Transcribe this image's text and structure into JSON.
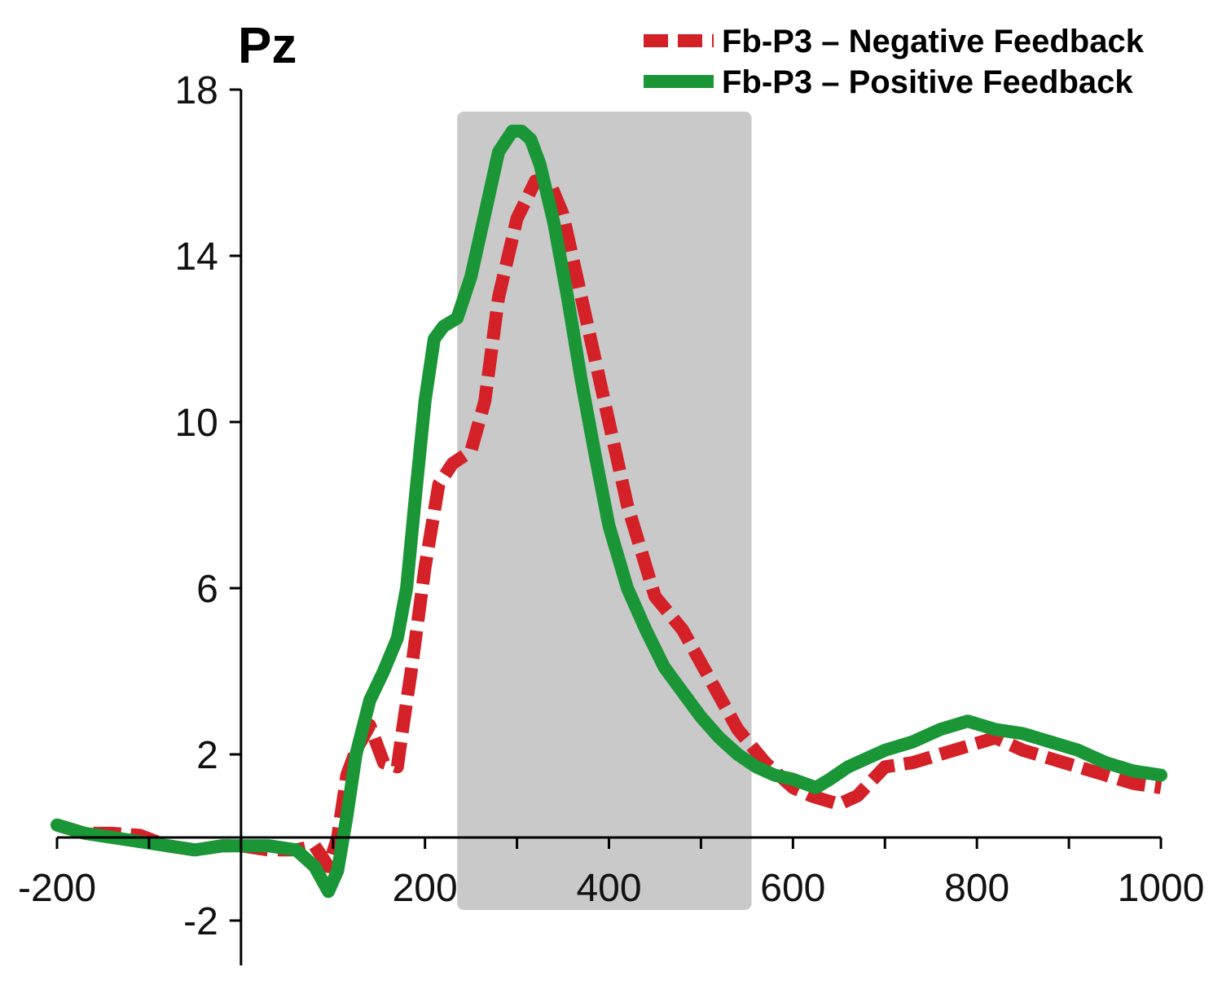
{
  "chart_data": {
    "type": "line",
    "title": "Pz",
    "xlabel": "",
    "ylabel": "",
    "xlim": [
      -200,
      1000
    ],
    "ylim": [
      -3,
      18
    ],
    "x_ticks": [
      -200,
      200,
      400,
      600,
      800,
      1000
    ],
    "y_ticks": [
      -2,
      2,
      6,
      10,
      14,
      18
    ],
    "shaded_region": {
      "x_start": 235,
      "x_end": 555,
      "color": "#c9c9c9"
    },
    "legend_position": "top-right",
    "series": [
      {
        "name": "Fb-P3 – Negative Feedback",
        "color": "#d42027",
        "style": "dashed",
        "x": [
          -200,
          -170,
          -140,
          -110,
          -80,
          -50,
          -20,
          0,
          30,
          60,
          80,
          95,
          105,
          115,
          125,
          140,
          155,
          170,
          175,
          185,
          200,
          215,
          230,
          250,
          265,
          280,
          300,
          320,
          335,
          350,
          375,
          400,
          420,
          450,
          480,
          510,
          540,
          570,
          600,
          620,
          650,
          670,
          700,
          730,
          760,
          790,
          820,
          850,
          880,
          910,
          940,
          970,
          1000
        ],
        "y": [
          0.3,
          0.1,
          0.1,
          0.05,
          -0.2,
          -0.3,
          -0.2,
          -0.2,
          -0.3,
          -0.3,
          -0.2,
          -0.7,
          0.0,
          1.5,
          2.1,
          2.7,
          1.8,
          1.7,
          2.5,
          4.0,
          6.5,
          8.5,
          9.0,
          9.3,
          10.5,
          13.0,
          14.9,
          15.8,
          15.8,
          15.0,
          12.5,
          10.0,
          8.0,
          5.8,
          5.0,
          3.8,
          2.6,
          1.8,
          1.2,
          1.0,
          0.8,
          1.0,
          1.7,
          1.8,
          2.0,
          2.2,
          2.4,
          2.1,
          1.9,
          1.7,
          1.5,
          1.3,
          1.2
        ]
      },
      {
        "name": "Fb-P3 – Positive Feedback",
        "color": "#1a9637",
        "style": "solid",
        "x": [
          -200,
          -170,
          -140,
          -110,
          -80,
          -50,
          -20,
          0,
          30,
          60,
          80,
          95,
          105,
          115,
          125,
          140,
          155,
          170,
          180,
          190,
          200,
          210,
          220,
          235,
          250,
          265,
          280,
          295,
          305,
          315,
          325,
          340,
          355,
          370,
          385,
          400,
          420,
          440,
          460,
          480,
          500,
          520,
          540,
          560,
          580,
          600,
          625,
          640,
          660,
          680,
          700,
          730,
          760,
          790,
          820,
          850,
          880,
          910,
          940,
          970,
          1000
        ],
        "y": [
          0.3,
          0.1,
          0.0,
          -0.1,
          -0.2,
          -0.3,
          -0.2,
          -0.2,
          -0.2,
          -0.3,
          -0.7,
          -1.3,
          -0.8,
          0.5,
          2.0,
          3.3,
          4.0,
          4.8,
          6.0,
          8.3,
          10.5,
          12.0,
          12.3,
          12.5,
          13.5,
          15.0,
          16.5,
          17.0,
          17.0,
          16.8,
          16.2,
          14.8,
          13.0,
          11.0,
          9.2,
          7.5,
          6.0,
          5.0,
          4.1,
          3.5,
          2.9,
          2.4,
          2.0,
          1.7,
          1.5,
          1.4,
          1.2,
          1.4,
          1.7,
          1.9,
          2.1,
          2.3,
          2.6,
          2.8,
          2.6,
          2.5,
          2.3,
          2.1,
          1.8,
          1.6,
          1.5
        ]
      }
    ]
  }
}
